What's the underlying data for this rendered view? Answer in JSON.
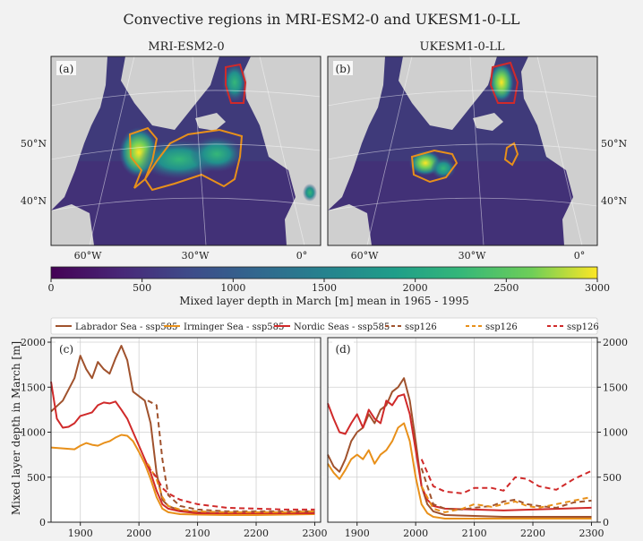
{
  "title": "Convective regions in MRI-ESM2-0 and UKESM1-0-LL",
  "maps": [
    {
      "id": "map-mri",
      "panel_label": "(a)",
      "model": "MRI-ESM2-0",
      "lat_labels": [
        "50°N",
        "40°N"
      ],
      "lon_labels": [
        "60°W",
        "30°W",
        "0°"
      ]
    },
    {
      "id": "map-ukesm",
      "panel_label": "(b)",
      "model": "UKESM1-0-LL",
      "lat_labels": [
        "50°N",
        "40°N"
      ],
      "lon_labels": [
        "60°W",
        "30°W",
        "0°"
      ]
    }
  ],
  "colorbar": {
    "label": "Mixed layer depth in March [m] mean in 1965 - 1995",
    "ticks": [
      "0",
      "500",
      "1000",
      "1500",
      "2000",
      "2500",
      "3000"
    ],
    "colormap": "viridis",
    "range": [
      0,
      3000
    ]
  },
  "legend": [
    {
      "label": "Labrador Sea - ssp585",
      "color": "#a0522d",
      "dash": false
    },
    {
      "label": "Irminger Sea - ssp585",
      "color": "#e8901a",
      "dash": false
    },
    {
      "label": "Nordic Seas - ssp585",
      "color": "#d02a2a",
      "dash": false
    },
    {
      "label": "ssp126",
      "color": "#a0522d",
      "dash": true
    },
    {
      "label": "ssp126",
      "color": "#e8901a",
      "dash": true
    },
    {
      "label": "ssp126",
      "color": "#d02a2a",
      "dash": true
    }
  ],
  "chart_data": [
    {
      "type": "line",
      "panel": "(c)",
      "ylabel": "Mixed layer depth in March [m]",
      "xlim": [
        1850,
        2310
      ],
      "ylim": [
        0,
        2050
      ],
      "xticks": [
        1900,
        2000,
        2100,
        2200,
        2300
      ],
      "yticks": [
        0,
        500,
        1000,
        1500,
        2000
      ],
      "grid": true,
      "series": [
        {
          "name": "Labrador Sea - ssp585",
          "color": "#a0522d",
          "dash": false,
          "x": [
            1850,
            1870,
            1890,
            1900,
            1910,
            1920,
            1930,
            1940,
            1950,
            1960,
            1970,
            1980,
            1990,
            2000,
            2010,
            2020,
            2030,
            2040,
            2050,
            2070,
            2100,
            2150,
            2200,
            2250,
            2300
          ],
          "y": [
            1230,
            1350,
            1600,
            1850,
            1700,
            1600,
            1780,
            1700,
            1650,
            1820,
            1960,
            1800,
            1450,
            1400,
            1350,
            1100,
            550,
            250,
            180,
            130,
            110,
            100,
            100,
            100,
            110
          ]
        },
        {
          "name": "Irminger Sea - ssp585",
          "color": "#e8901a",
          "dash": false,
          "x": [
            1850,
            1870,
            1890,
            1900,
            1910,
            1920,
            1930,
            1940,
            1950,
            1960,
            1970,
            1980,
            1990,
            2000,
            2010,
            2020,
            2030,
            2040,
            2050,
            2070,
            2100,
            2150,
            2200,
            2250,
            2300
          ],
          "y": [
            830,
            820,
            810,
            850,
            880,
            860,
            850,
            880,
            900,
            940,
            970,
            960,
            900,
            780,
            650,
            480,
            280,
            150,
            110,
            90,
            85,
            80,
            80,
            85,
            90
          ]
        },
        {
          "name": "Nordic Seas - ssp585",
          "color": "#d02a2a",
          "dash": false,
          "x": [
            1850,
            1860,
            1870,
            1880,
            1890,
            1900,
            1910,
            1920,
            1930,
            1940,
            1950,
            1960,
            1970,
            1980,
            1990,
            2000,
            2010,
            2020,
            2030,
            2040,
            2050,
            2070,
            2100,
            2150,
            2200,
            2250,
            2300
          ],
          "y": [
            1560,
            1150,
            1050,
            1060,
            1100,
            1180,
            1200,
            1220,
            1300,
            1330,
            1320,
            1340,
            1250,
            1150,
            1000,
            850,
            700,
            550,
            350,
            200,
            150,
            120,
            100,
            100,
            100,
            100,
            100
          ]
        },
        {
          "name": "ssp126",
          "color": "#a0522d",
          "dash": true,
          "x": [
            2015,
            2030,
            2040,
            2050,
            2070,
            2100,
            2150,
            2200,
            2250,
            2300
          ],
          "y": [
            1350,
            1300,
            700,
            300,
            180,
            140,
            120,
            120,
            120,
            120
          ]
        },
        {
          "name": "ssp126",
          "color": "#e8901a",
          "dash": true,
          "x": [
            2015,
            2030,
            2040,
            2050,
            2070,
            2100,
            2150,
            2200,
            2250,
            2300
          ],
          "y": [
            650,
            480,
            280,
            180,
            140,
            120,
            110,
            110,
            110,
            120
          ]
        },
        {
          "name": "ssp126",
          "color": "#d02a2a",
          "dash": true,
          "x": [
            2015,
            2030,
            2040,
            2050,
            2070,
            2100,
            2150,
            2200,
            2250,
            2300
          ],
          "y": [
            620,
            500,
            380,
            320,
            250,
            200,
            160,
            150,
            140,
            140
          ]
        }
      ]
    },
    {
      "type": "line",
      "panel": "(d)",
      "xlim": [
        1850,
        2310
      ],
      "ylim": [
        0,
        2050
      ],
      "xticks": [
        1900,
        2000,
        2100,
        2200,
        2300
      ],
      "yticks": [
        0,
        500,
        1000,
        1500,
        2000
      ],
      "grid": true,
      "series": [
        {
          "name": "Labrador Sea - ssp585",
          "color": "#a0522d",
          "dash": false,
          "x": [
            1850,
            1860,
            1870,
            1880,
            1890,
            1900,
            1910,
            1920,
            1930,
            1940,
            1950,
            1960,
            1970,
            1980,
            1990,
            2000,
            2010,
            2020,
            2030,
            2050,
            2100,
            2150,
            2200,
            2250,
            2300
          ],
          "y": [
            750,
            620,
            560,
            700,
            900,
            1000,
            1050,
            1200,
            1100,
            1250,
            1300,
            1450,
            1500,
            1600,
            1350,
            900,
            400,
            200,
            120,
            80,
            70,
            60,
            60,
            60,
            60
          ]
        },
        {
          "name": "Irminger Sea - ssp585",
          "color": "#e8901a",
          "dash": false,
          "x": [
            1850,
            1860,
            1870,
            1880,
            1890,
            1900,
            1910,
            1920,
            1930,
            1940,
            1950,
            1960,
            1970,
            1980,
            1990,
            2000,
            2010,
            2020,
            2030,
            2050,
            2100,
            2150,
            2200,
            2250,
            2300
          ],
          "y": [
            650,
            550,
            480,
            580,
            700,
            750,
            700,
            800,
            650,
            750,
            800,
            900,
            1050,
            1100,
            900,
            500,
            200,
            100,
            60,
            40,
            40,
            40,
            40,
            40,
            40
          ]
        },
        {
          "name": "Nordic Seas - ssp585",
          "color": "#d02a2a",
          "dash": false,
          "x": [
            1850,
            1860,
            1870,
            1880,
            1890,
            1900,
            1910,
            1920,
            1930,
            1940,
            1950,
            1960,
            1970,
            1980,
            1990,
            2000,
            2010,
            2020,
            2030,
            2050,
            2100,
            2150,
            2200,
            2250,
            2300
          ],
          "y": [
            1320,
            1150,
            1000,
            980,
            1100,
            1200,
            1050,
            1250,
            1150,
            1100,
            1350,
            1300,
            1400,
            1420,
            1200,
            800,
            400,
            250,
            180,
            150,
            140,
            130,
            140,
            150,
            160
          ]
        },
        {
          "name": "ssp126",
          "color": "#a0522d",
          "dash": true,
          "x": [
            2010,
            2030,
            2050,
            2080,
            2100,
            2130,
            2150,
            2170,
            2190,
            2210,
            2240,
            2270,
            2300
          ],
          "y": [
            600,
            200,
            150,
            140,
            160,
            180,
            230,
            250,
            200,
            180,
            160,
            220,
            240
          ]
        },
        {
          "name": "ssp126",
          "color": "#e8901a",
          "dash": true,
          "x": [
            2010,
            2030,
            2050,
            2080,
            2100,
            2130,
            2150,
            2170,
            2190,
            2210,
            2240,
            2270,
            2300
          ],
          "y": [
            400,
            150,
            110,
            150,
            200,
            170,
            200,
            230,
            180,
            160,
            200,
            240,
            280
          ]
        },
        {
          "name": "ssp126",
          "color": "#d02a2a",
          "dash": true,
          "x": [
            2010,
            2030,
            2050,
            2080,
            2100,
            2130,
            2150,
            2170,
            2190,
            2210,
            2240,
            2270,
            2300
          ],
          "y": [
            700,
            400,
            340,
            320,
            380,
            380,
            350,
            500,
            480,
            400,
            360,
            480,
            570
          ]
        }
      ]
    }
  ]
}
